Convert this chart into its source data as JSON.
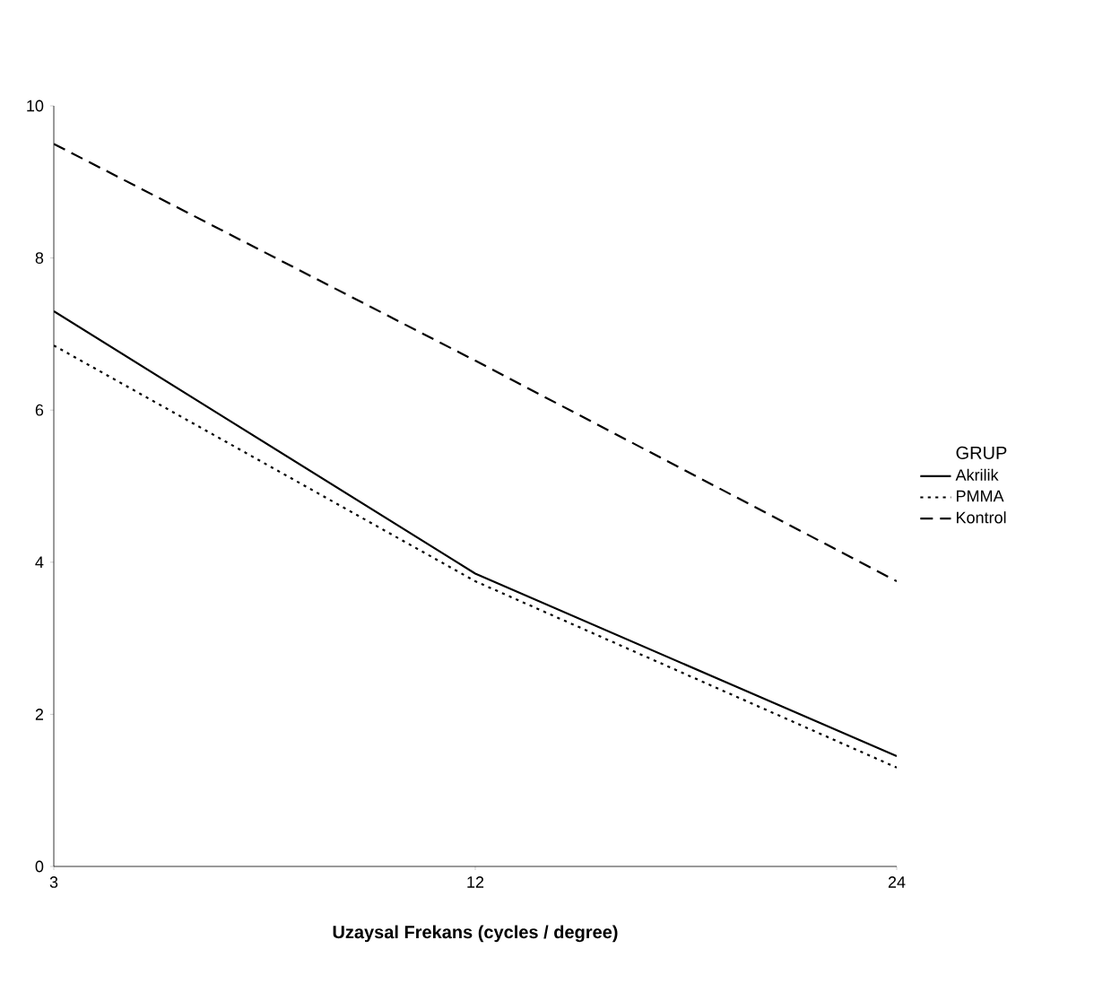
{
  "chart_data": {
    "type": "line",
    "xlabel": "Uzaysal Frekans (cycles / degree)",
    "legend_title": "GRUP",
    "categories": [
      "3",
      "12",
      "24"
    ],
    "series": [
      {
        "name": "Akrilik",
        "color": "#000000",
        "line_style": "solid",
        "values": [
          7.3,
          3.85,
          1.45
        ]
      },
      {
        "name": "PMMA",
        "color": "#000000",
        "line_style": "dotted",
        "values": [
          6.85,
          3.75,
          1.3
        ]
      },
      {
        "name": "Kontrol",
        "color": "#000000",
        "line_style": "dashed",
        "values": [
          9.5,
          6.65,
          3.75
        ]
      }
    ],
    "ylim": [
      0,
      10
    ],
    "yticks": [
      0,
      2,
      4,
      6,
      8,
      10
    ],
    "grid": false,
    "legend": "right",
    "marker": "none"
  }
}
